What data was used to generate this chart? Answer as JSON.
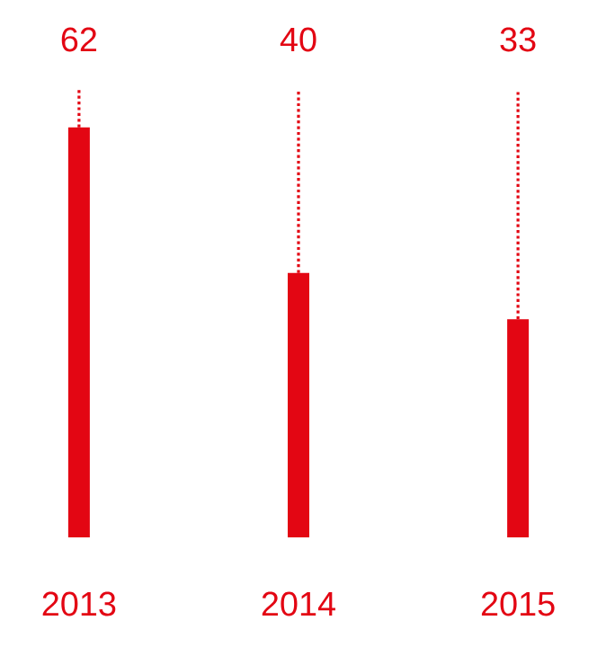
{
  "chart_data": {
    "type": "bar",
    "categories": [
      "2013",
      "2014",
      "2015"
    ],
    "values": [
      62,
      40,
      33
    ],
    "color": "#e30613",
    "data_labels": true
  }
}
